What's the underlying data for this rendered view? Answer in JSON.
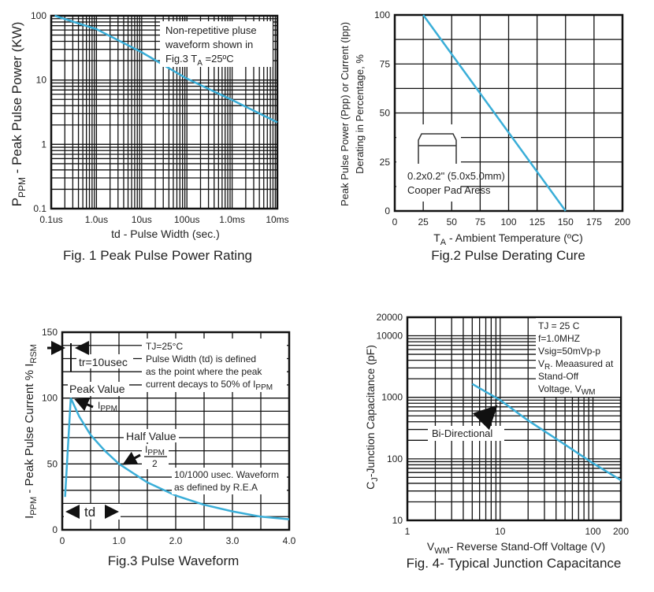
{
  "colors": {
    "curve": "#3aaed8",
    "grid": "#111111"
  },
  "chart_data": [
    {
      "type": "line",
      "title": "Fig. 1 Peak Pulse Power Rating",
      "xlabel": "td - Pulse Width (sec.)",
      "ylabel": {
        "main": "P",
        "sub": "PPM",
        "rest": " - Peak Pulse Power (KW)"
      },
      "xscale": "log",
      "yscale": "log",
      "xlim_us": [
        0.1,
        10000
      ],
      "ylim": [
        0.1,
        100
      ],
      "x_ticks": [
        {
          "v": 0.1,
          "label": "0.1us"
        },
        {
          "v": 1,
          "label": "1.0us"
        },
        {
          "v": 10,
          "label": "10us"
        },
        {
          "v": 100,
          "label": "100us"
        },
        {
          "v": 1000,
          "label": "1.0ms"
        },
        {
          "v": 10000,
          "label": "10ms"
        }
      ],
      "y_ticks": [
        {
          "v": 0.1,
          "label": "0.1"
        },
        {
          "v": 1,
          "label": "1"
        },
        {
          "v": 10,
          "label": "10"
        },
        {
          "v": 100,
          "label": "100"
        }
      ],
      "grid": true,
      "series": [
        {
          "x_us": [
            0.12,
            1,
            10,
            100,
            1000,
            10000
          ],
          "y": [
            100,
            62,
            27,
            10.5,
            4.9,
            2.2
          ]
        }
      ],
      "annotation": {
        "line1": "Non-repetitive pluse",
        "line2": "waveform shown in",
        "line3a": "Fig.3 T",
        "line3sub": "A",
        "line3b": " =25ºC"
      }
    },
    {
      "type": "line",
      "title": "Fig.2 Pulse Derating Cure",
      "xlabel": {
        "main": "T",
        "sub": "A",
        "rest": " - Ambient Temperature (ºC)"
      },
      "ylabel": {
        "line1": "Peak Pulse Power (Ppp) or Current (Ipp)",
        "line2": "Derating in Percentage, %"
      },
      "xlim": [
        0,
        200
      ],
      "ylim": [
        0,
        100
      ],
      "x_ticks": [
        0,
        25,
        50,
        75,
        100,
        125,
        150,
        175,
        200
      ],
      "y_ticks": [
        0,
        25,
        50,
        75,
        100
      ],
      "grid": true,
      "series": [
        {
          "x": [
            25,
            150
          ],
          "y": [
            100,
            0
          ]
        }
      ],
      "annotation": {
        "line1": "0.2x0.2\" (5.0x5.0mm)",
        "line2": "Cooper Pad Aress"
      }
    },
    {
      "type": "line",
      "title": "Fig.3 Pulse Waveform",
      "ylabel": {
        "a": "I",
        "asub": "PPM",
        "b": " - Peak Pulse Current % I",
        "bsub": "RSM"
      },
      "xlim": [
        0,
        4
      ],
      "ylim": [
        0,
        150
      ],
      "x_ticks": [
        {
          "v": 0,
          "label": "0"
        },
        {
          "v": 1,
          "label": "1.0"
        },
        {
          "v": 2,
          "label": "2.0"
        },
        {
          "v": 3,
          "label": "3.0"
        },
        {
          "v": 4,
          "label": "4.0"
        }
      ],
      "y_ticks": [
        0,
        50,
        100,
        150
      ],
      "grid": true,
      "series": [
        {
          "x": [
            0.05,
            0.15,
            0.3,
            0.5,
            0.75,
            1.0,
            1.5,
            2.0,
            2.5,
            3.0,
            3.5,
            4.0
          ],
          "y": [
            25,
            100,
            86,
            72,
            60,
            50,
            36,
            26,
            19,
            14,
            10,
            8
          ]
        }
      ],
      "annotations": {
        "tr": "tr=10usec",
        "conditions": [
          "TJ=25°C",
          "Pulse Width (td) is defined",
          "as the point where the peak"
        ],
        "cond_last": "current decays to 50% of I",
        "cond_last_sub": "PPM",
        "peak": "Peak Value",
        "ippm": "I",
        "ippm_sub": "PPM",
        "half": "Half Value",
        "half_num": "I",
        "half_num_sub": "PPM",
        "half_den": "2",
        "waveform1": "10/1000 usec. Waveform",
        "waveform2": "as defined by R.E.A",
        "td": "td"
      }
    },
    {
      "type": "line",
      "title": "Fig. 4- Typical Junction Capacitance",
      "xlabel": {
        "main": "V",
        "sub": "WM",
        "rest": "- Reverse Stand-Off Voltage (V)"
      },
      "ylabel": {
        "main": "C",
        "sub": "J",
        "rest": "-Junction Capacitance (pF)"
      },
      "xscale": "log",
      "yscale": "log",
      "xlim": [
        1,
        200
      ],
      "ylim": [
        10,
        20000
      ],
      "x_ticks": [
        {
          "v": 1,
          "label": "1"
        },
        {
          "v": 10,
          "label": "10"
        },
        {
          "v": 100,
          "label": "100"
        },
        {
          "v": 200,
          "label": "200"
        }
      ],
      "y_ticks": [
        {
          "v": 10,
          "label": "10"
        },
        {
          "v": 100,
          "label": "100"
        },
        {
          "v": 1000,
          "label": "1000"
        },
        {
          "v": 10000,
          "label": "10000"
        },
        {
          "v": 20000,
          "label": "20000"
        }
      ],
      "grid": true,
      "series": [
        {
          "name": "Bi-Directional",
          "x": [
            5,
            10,
            20,
            50,
            100,
            200
          ],
          "y": [
            1650,
            900,
            420,
            170,
            85,
            45
          ]
        }
      ],
      "annotation": {
        "l1": "TJ = 25 C",
        "l2": "f=1.0MHZ",
        "l3": "Vsig=50mVp-p",
        "l4a": "V",
        "l4sub": "R",
        "l4b": ". Meaasured at",
        "l5": "Stand-Off",
        "l6a": "Voltage, V",
        "l6sub": "WM"
      }
    }
  ]
}
